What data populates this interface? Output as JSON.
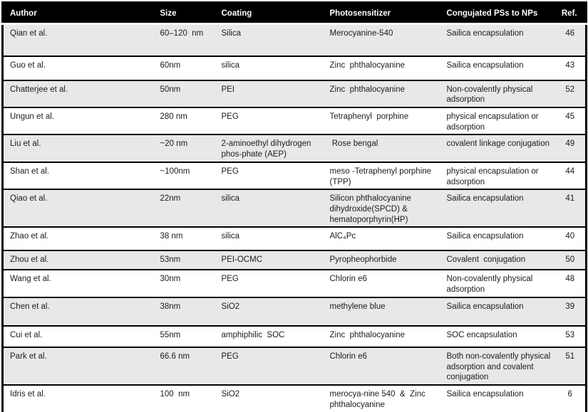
{
  "table": {
    "columns": [
      "Author",
      "Size",
      "Coating",
      "Photosensitizer",
      "Congujated PSs to NPs",
      "Ref."
    ],
    "rows": [
      {
        "author": "Qian et al.",
        "size": "60–120  nm",
        "coating": "Silica",
        "photosensitizer": "Merocyanine-540",
        "conjugation": "Sailica encapsulation",
        "ref": "46"
      },
      {
        "author": "Guo et al.",
        "size": "60nm",
        "coating": "silica",
        "photosensitizer": "Zinc  phthalocyanine",
        "conjugation": "Sailica encapsulation",
        "ref": "43"
      },
      {
        "author": "Chatterjee et al.",
        "size": "50nm",
        "coating": "PEI",
        "photosensitizer": "Zinc  phthalocyanine",
        "conjugation": "Non-covalently physical adsorption",
        "ref": "52"
      },
      {
        "author": "Ungun et al.",
        "size": "280 nm",
        "coating": "PEG",
        "photosensitizer": "Tetraphenyl  porphine",
        "conjugation": "physical encapsulation or adsorption",
        "ref": "45"
      },
      {
        "author": "Liu et al.",
        "size": "~20 nm",
        "coating": "2-aminoethyl dihydrogen phos-phate (AEP)",
        "photosensitizer": " Rose bengal",
        "conjugation": "covalent linkage conjugation",
        "ref": "49"
      },
      {
        "author": "Shan et al.",
        "size": "~100nm",
        "coating": "PEG",
        "photosensitizer": "meso -Tetraphenyl porphine (TPP)",
        "conjugation": "physical encapsulation or adsorption",
        "ref": "44"
      },
      {
        "author": "Qiao et al.",
        "size": "22nm",
        "coating": "silica",
        "photosensitizer": "Silicon phthalocyanine dihydroxide(SPCD) & hematoporphyrin(HP)",
        "conjugation": "Sailica encapsulation",
        "ref": "41"
      },
      {
        "author": "Zhao et al.",
        "size": "38 nm",
        "coating": "silica",
        "photosensitizer": "AlC₄Pc",
        "conjugation": "Sailica encapsulation",
        "ref": "40"
      },
      {
        "author": "Zhou et al.",
        "size": "53nm",
        "coating": "PEI-OCMC",
        "photosensitizer": "Pyropheophorbide",
        "conjugation": "Covalent  conjugation",
        "ref": "50"
      },
      {
        "author": "Wang et al.",
        "size": "30nm",
        "coating": "PEG",
        "photosensitizer": "Chlorin e6",
        "conjugation": "Non-covalently physical adsorption",
        "ref": "48"
      },
      {
        "author": "Chen et al.",
        "size": "38nm",
        "coating": "SiO2",
        "photosensitizer": "methylene blue",
        "conjugation": "Sailica encapsulation",
        "ref": "39"
      },
      {
        "author": "Cui et al.",
        "size": "55nm",
        "coating": "amphiphilic  SOC",
        "photosensitizer": "Zinc  phthalocyanine",
        "conjugation": "SOC encapsulation",
        "ref": "53"
      },
      {
        "author": "Park et al.",
        "size": "66.6 nm",
        "coating": "PEG",
        "photosensitizer": "Chlorin e6",
        "conjugation": "Both non-covalently physical adsorption and covalent conjugation",
        "ref": "51"
      },
      {
        "author": "Idris et al.",
        "size": "100  nm",
        "coating": "SiO2",
        "photosensitizer": "merocya-nine 540  &  Zinc phthalocyanine",
        "conjugation": "Sailica encapsulation",
        "ref": "6"
      }
    ]
  },
  "colors": {
    "header_bg": "#000000",
    "header_text": "#ffffff",
    "alt_row_bg": "#e8e8e8",
    "row_bg": "#ffffff",
    "border": "#000000",
    "body_text": "#1c1c1c"
  }
}
